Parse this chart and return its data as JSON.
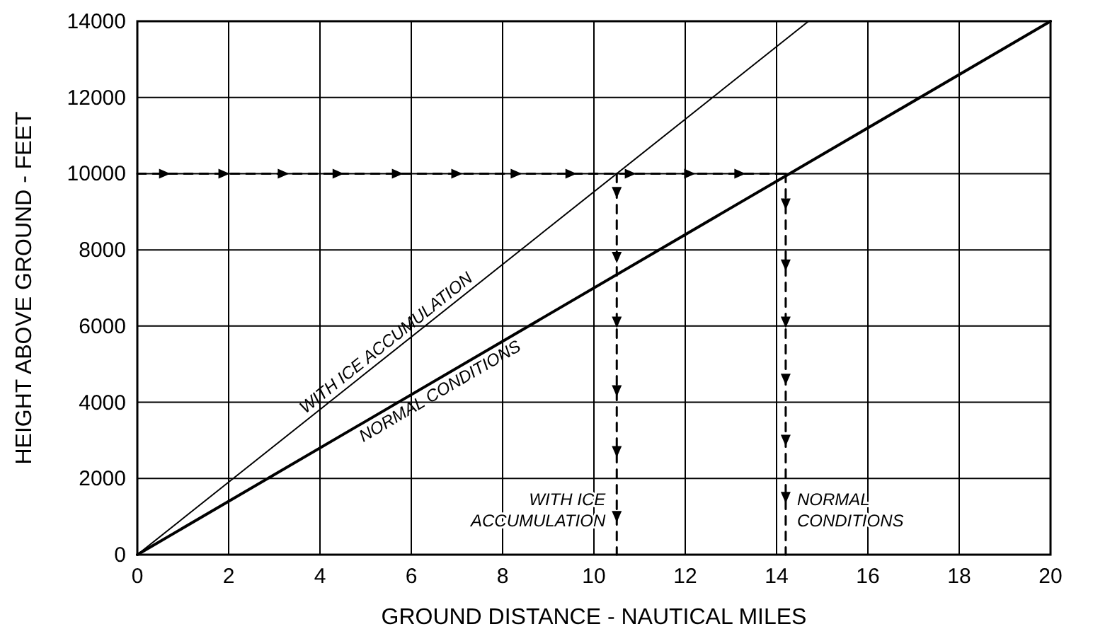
{
  "chart_data": {
    "type": "line",
    "xlabel": "GROUND DISTANCE - NAUTICAL MILES",
    "ylabel": "HEIGHT ABOVE GROUND - FEET",
    "xlim": [
      0,
      20
    ],
    "xticks": [
      0,
      2,
      4,
      6,
      8,
      10,
      12,
      14,
      16,
      18,
      20
    ],
    "ylim": [
      0,
      14000
    ],
    "yticks": [
      0,
      2000,
      4000,
      6000,
      8000,
      10000,
      12000,
      14000
    ],
    "grid": true,
    "series": [
      {
        "color": "#000000",
        "x": [
          0,
          14.7
        ],
        "values": [
          0,
          14000
        ],
        "line_style": "solid"
      },
      {
        "color": "#000000",
        "x": [
          0,
          20
        ],
        "values": [
          0,
          14000
        ],
        "line_style": "solid"
      },
      {
        "color": "#000000",
        "x": [
          0,
          0.6,
          1.9,
          3.2,
          4.4,
          5.7,
          7.0,
          8.3,
          9.5,
          10.8,
          12.1,
          13.2,
          14.2
        ],
        "values": [
          10000,
          10000,
          10000,
          10000,
          10000,
          10000,
          10000,
          10000,
          10000,
          10000,
          10000,
          10000,
          10000
        ],
        "line_style": "dashed",
        "marker": "triangle"
      },
      {
        "color": "#000000",
        "x": [
          10.5,
          10.5,
          10.5,
          10.5,
          10.5,
          10.5,
          10.5,
          10.5
        ],
        "values": [
          10000,
          9500,
          7800,
          6100,
          4300,
          2700,
          1000,
          0
        ],
        "line_style": "dashed",
        "marker": "triangle"
      },
      {
        "color": "#000000",
        "x": [
          14.2,
          14.2,
          14.2,
          14.2,
          14.2,
          14.2,
          14.2,
          14.2
        ],
        "values": [
          10000,
          9200,
          7600,
          6100,
          4600,
          3000,
          1500,
          0
        ],
        "line_style": "dashed",
        "marker": "triangle"
      }
    ],
    "annotations": [
      {
        "text": "WITH ICE ACCUMULATION",
        "x": 5.6,
        "y": 5330
      },
      {
        "text": "NORMAL CONDITIONS",
        "x": 6.5,
        "y": 4550
      },
      {
        "text": "WITH ICE ACCUMULATION",
        "x": 10.5,
        "y": 1300
      },
      {
        "text": "NORMAL CONDITIONS",
        "x": 14.2,
        "y": 1300
      }
    ]
  }
}
